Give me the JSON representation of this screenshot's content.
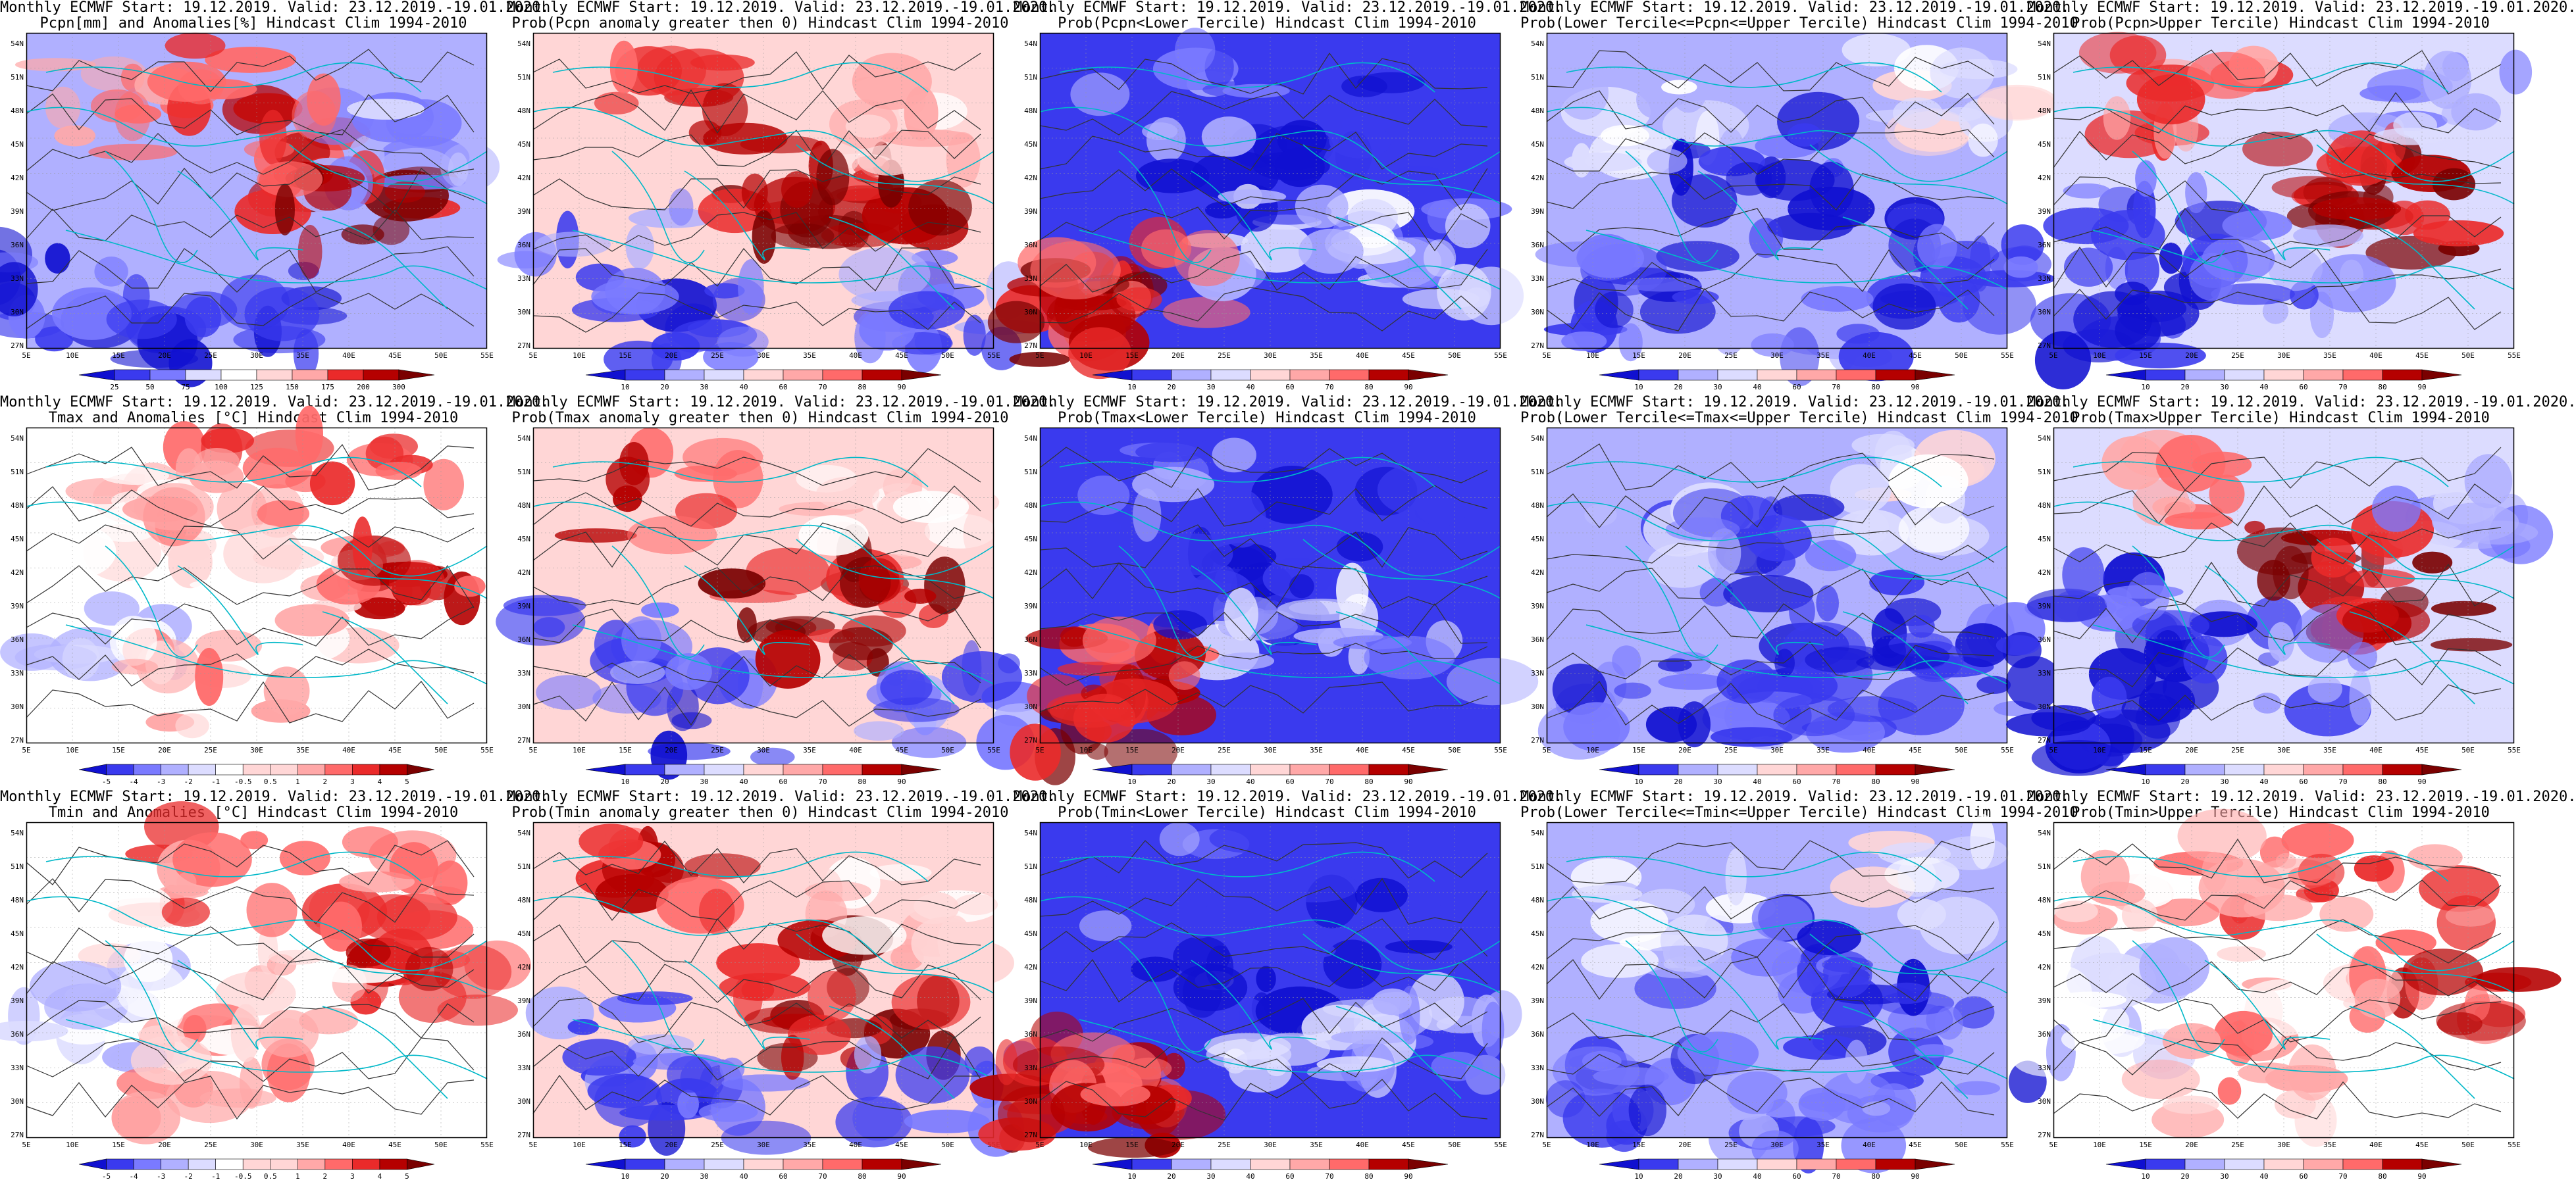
{
  "panels": [
    {
      "id": "pcpn-anom",
      "title1": "Monthly ECMWF Start: 19.12.2019. Valid: 23.12.2019.-19.01.2020.",
      "title2": "Pcpn[mm] and Anomalies[%] Hindcast Clim 1994-2010",
      "scheme": "anom",
      "colorbar_labels": [
        "25",
        "50",
        "75",
        "100",
        "125",
        "150",
        "175",
        "200",
        "300"
      ]
    },
    {
      "id": "pcpn-prob-gt0",
      "title1": "Monthly ECMWF Start: 19.12.2019. Valid: 23.12.2019.-19.01.2020.",
      "title2": "Prob(Pcpn anomaly greater then 0) Hindcast Clim 1994-2010",
      "scheme": "hot",
      "colorbar_labels": [
        "10",
        "20",
        "30",
        "40",
        "60",
        "70",
        "80",
        "90"
      ]
    },
    {
      "id": "pcpn-prob-lower",
      "title1": "Monthly ECMWF Start: 19.12.2019. Valid: 23.12.2019.-19.01.2020.",
      "title2": "Prob(Pcpn<Lower Tercile) Hindcast Clim 1994-2010",
      "scheme": "cold",
      "colorbar_labels": [
        "10",
        "20",
        "30",
        "40",
        "60",
        "70",
        "80",
        "90"
      ]
    },
    {
      "id": "pcpn-prob-middle",
      "title1": "Monthly ECMWF Start: 19.12.2019. Valid: 23.12.2019.-19.01.2020.",
      "title2": "Prob(Lower Tercile<=Pcpn<=Upper Tercile) Hindcast Clim 1994-2010",
      "scheme": "mixcold",
      "colorbar_labels": [
        "10",
        "20",
        "30",
        "40",
        "60",
        "70",
        "80",
        "90"
      ]
    },
    {
      "id": "pcpn-prob-upper",
      "title1": "Monthly ECMWF Start: 19.12.2019. Valid: 23.12.2019.-19.01.2020.",
      "title2": "Prob(Pcpn>Upper Tercile) Hindcast Clim 1994-2010",
      "scheme": "mix",
      "colorbar_labels": [
        "10",
        "20",
        "30",
        "40",
        "60",
        "70",
        "80",
        "90"
      ]
    },
    {
      "id": "tmax-anom",
      "title1": "Monthly ECMWF Start: 19.12.2019. Valid: 23.12.2019.-19.01.2020.",
      "title2": "Tmax and Anomalies [°C] Hindcast Clim 1994-2010",
      "scheme": "warm",
      "colorbar_labels": [
        "-5",
        "-4",
        "-3",
        "-2",
        "-1",
        "-0.5",
        "0.5",
        "1",
        "2",
        "3",
        "4",
        "5"
      ]
    },
    {
      "id": "tmax-prob-gt0",
      "title1": "Monthly ECMWF Start: 19.12.2019. Valid: 23.12.2019.-19.01.2020.",
      "title2": "Prob(Tmax anomaly greater then 0) Hindcast Clim 1994-2010",
      "scheme": "hot",
      "colorbar_labels": [
        "10",
        "20",
        "30",
        "40",
        "60",
        "70",
        "80",
        "90"
      ]
    },
    {
      "id": "tmax-prob-lower",
      "title1": "Monthly ECMWF Start: 19.12.2019. Valid: 23.12.2019.-19.01.2020.",
      "title2": "Prob(Tmax<Lower Tercile) Hindcast Clim 1994-2010",
      "scheme": "cold",
      "colorbar_labels": [
        "10",
        "20",
        "30",
        "40",
        "60",
        "70",
        "80",
        "90"
      ]
    },
    {
      "id": "tmax-prob-middle",
      "title1": "Monthly ECMWF Start: 19.12.2019. Valid: 23.12.2019.-19.01.2020.",
      "title2": "Prob(Lower Tercile<=Tmax<=Upper Tercile) Hindcast Clim 1994-2010",
      "scheme": "mixcold",
      "colorbar_labels": [
        "10",
        "20",
        "30",
        "40",
        "60",
        "70",
        "80",
        "90"
      ]
    },
    {
      "id": "tmax-prob-upper",
      "title1": "Monthly ECMWF Start: 19.12.2019. Valid: 23.12.2019.-19.01.2020.",
      "title2": "Prob(Tmax>Upper Tercile) Hindcast Clim 1994-2010",
      "scheme": "mix",
      "colorbar_labels": [
        "10",
        "20",
        "30",
        "40",
        "60",
        "70",
        "80",
        "90"
      ]
    },
    {
      "id": "tmin-anom",
      "title1": "Monthly ECMWF Start: 19.12.2019. Valid: 23.12.2019.-19.01.2020.",
      "title2": "Tmin and Anomalies [°C] Hindcast Clim 1994-2010",
      "scheme": "warm",
      "colorbar_labels": [
        "-5",
        "-4",
        "-3",
        "-2",
        "-1",
        "-0.5",
        "0.5",
        "1",
        "2",
        "3",
        "4",
        "5"
      ]
    },
    {
      "id": "tmin-prob-gt0",
      "title1": "Monthly ECMWF Start: 19.12.2019. Valid: 23.12.2019.-19.01.2020.",
      "title2": "Prob(Tmin anomaly greater then 0) Hindcast Clim 1994-2010",
      "scheme": "hot",
      "colorbar_labels": [
        "10",
        "20",
        "30",
        "40",
        "60",
        "70",
        "80",
        "90"
      ]
    },
    {
      "id": "tmin-prob-lower",
      "title1": "Monthly ECMWF Start: 19.12.2019. Valid: 23.12.2019.-19.01.2020.",
      "title2": "Prob(Tmin<Lower Tercile) Hindcast Clim 1994-2010",
      "scheme": "cold",
      "colorbar_labels": [
        "10",
        "20",
        "30",
        "40",
        "60",
        "70",
        "80",
        "90"
      ]
    },
    {
      "id": "tmin-prob-middle",
      "title1": "Monthly ECMWF Start: 19.12.2019. Valid: 23.12.2019.-19.01.2020.",
      "title2": "Prob(Lower Tercile<=Tmin<=Upper Tercile) Hindcast Clim 1994-2010",
      "scheme": "mixcold",
      "colorbar_labels": [
        "10",
        "20",
        "30",
        "40",
        "60",
        "70",
        "80",
        "90"
      ]
    },
    {
      "id": "tmin-prob-upper",
      "title1": "Monthly ECMWF Start: 19.12.2019. Valid: 23.12.2019.-19.01.2020.",
      "title2": "Prob(Tmin>Upper Tercile) Hindcast Clim 1994-2010",
      "scheme": "warm",
      "colorbar_labels": [
        "10",
        "20",
        "30",
        "40",
        "60",
        "70",
        "80",
        "90"
      ]
    }
  ],
  "lat_labels": [
    "54N",
    "51N",
    "48N",
    "45N",
    "42N",
    "39N",
    "36N",
    "33N",
    "30N",
    "27N"
  ],
  "lon_labels": [
    "5E",
    "10E",
    "15E",
    "20E",
    "25E",
    "30E",
    "35E",
    "40E",
    "45E",
    "50E",
    "55E"
  ],
  "colors": {
    "cyan_border": "#00b8c8",
    "contour": "#333333",
    "palette": [
      "#1010d0",
      "#3a3aee",
      "#7a7aff",
      "#b0b0ff",
      "#dcdcff",
      "#ffffff",
      "#ffd6d6",
      "#ffa8a8",
      "#ff6a6a",
      "#ea2a2a",
      "#b50000",
      "#7a0000"
    ]
  }
}
